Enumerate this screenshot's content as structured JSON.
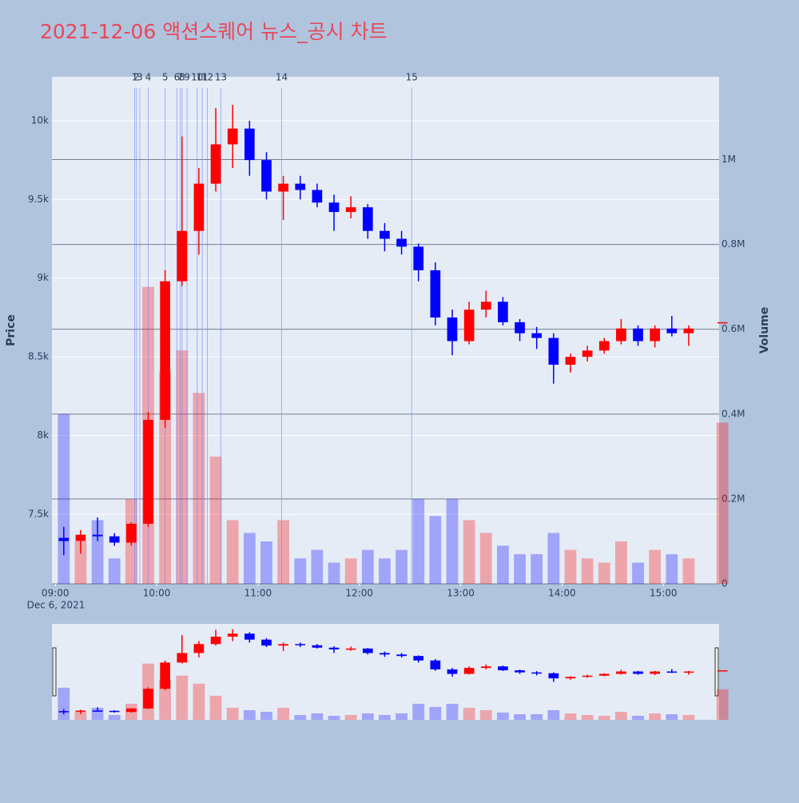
{
  "chart_data": {
    "type": "candlestick",
    "title": "2021-12-06 액션스퀘어 뉴스_공시 차트",
    "date_label": "Dec 6, 2021",
    "y_title": "Price",
    "y2_title": "Volume",
    "up_color": "#ff0000",
    "down_color": "#0000ff",
    "x": [
      "09:00",
      "09:10",
      "09:20",
      "09:30",
      "09:40",
      "09:50",
      "10:00",
      "10:10",
      "10:20",
      "10:30",
      "10:40",
      "10:50",
      "11:00",
      "11:10",
      "11:20",
      "11:30",
      "11:40",
      "11:50",
      "12:00",
      "12:10",
      "12:20",
      "12:30",
      "12:40",
      "12:50",
      "13:00",
      "13:10",
      "13:20",
      "13:30",
      "13:40",
      "13:50",
      "14:00",
      "14:10",
      "14:20",
      "14:30",
      "14:40",
      "14:50",
      "15:00",
      "15:10",
      "15:30"
    ],
    "open": [
      7350,
      7330,
      7370,
      7360,
      7320,
      7440,
      8100,
      8980,
      9300,
      9600,
      9850,
      9950,
      9750,
      9550,
      9600,
      9560,
      9480,
      9420,
      9450,
      9300,
      9250,
      9200,
      9050,
      8750,
      8600,
      8800,
      8850,
      8720,
      8650,
      8620,
      8450,
      8500,
      8540,
      8600,
      8680,
      8600,
      8680,
      8650,
      8720
    ],
    "high": [
      7420,
      7400,
      7480,
      7380,
      7450,
      8150,
      9050,
      9900,
      9700,
      10080,
      10100,
      10000,
      9800,
      9650,
      9650,
      9600,
      9530,
      9520,
      9470,
      9350,
      9300,
      9220,
      9100,
      8800,
      8850,
      8920,
      8880,
      8740,
      8690,
      8650,
      8520,
      8570,
      8620,
      8740,
      8700,
      8700,
      8760,
      8700,
      8720
    ],
    "low": [
      7240,
      7250,
      7330,
      7300,
      7300,
      7420,
      8050,
      8950,
      9150,
      9550,
      9700,
      9650,
      9500,
      9370,
      9500,
      9450,
      9300,
      9380,
      9250,
      9170,
      9150,
      8980,
      8700,
      8510,
      8580,
      8750,
      8700,
      8600,
      8550,
      8330,
      8400,
      8470,
      8520,
      8580,
      8570,
      8560,
      8630,
      8570,
      8720
    ],
    "close": [
      7330,
      7370,
      7360,
      7320,
      7440,
      8100,
      8980,
      9300,
      9600,
      9850,
      9950,
      9750,
      9550,
      9600,
      9560,
      9480,
      9420,
      9450,
      9300,
      9250,
      9200,
      9050,
      8750,
      8600,
      8800,
      8850,
      8720,
      8650,
      8620,
      8450,
      8500,
      8540,
      8600,
      8680,
      8600,
      8680,
      8650,
      8680,
      8720
    ],
    "volume": [
      400000,
      100000,
      150000,
      60000,
      200000,
      700000,
      500000,
      550000,
      450000,
      300000,
      150000,
      120000,
      100000,
      150000,
      60000,
      80000,
      50000,
      60000,
      80000,
      60000,
      80000,
      200000,
      160000,
      200000,
      150000,
      120000,
      90000,
      70000,
      70000,
      120000,
      80000,
      60000,
      50000,
      100000,
      50000,
      80000,
      70000,
      60000,
      380000
    ],
    "news": {
      "labels": [
        "1",
        "2",
        "3",
        "4",
        "5",
        "6",
        "7",
        "8",
        "9",
        "10",
        "11",
        "12",
        "13",
        "14",
        "15"
      ],
      "x": [
        "09:47",
        "09:48",
        "09:50",
        "09:55",
        "10:05",
        "10:12",
        "10:14",
        "10:15",
        "10:18",
        "10:24",
        "10:27",
        "10:30",
        "10:38",
        "11:14",
        "12:31"
      ],
      "color": "#6f86ff"
    },
    "xlim": [
      "08:58",
      "15:33"
    ],
    "xticks": [
      "09:00",
      "10:00",
      "11:00",
      "12:00",
      "13:00",
      "14:00",
      "15:00"
    ],
    "ylim": [
      7058,
      10279
    ],
    "yticks": [
      {
        "value": 7500,
        "label": "7.5k"
      },
      {
        "value": 8000,
        "label": "8k"
      },
      {
        "value": 8500,
        "label": "8.5k"
      },
      {
        "value": 9000,
        "label": "9k"
      },
      {
        "value": 9500,
        "label": "9.5k"
      },
      {
        "value": 10000,
        "label": "10k"
      }
    ],
    "y2lim": [
      0,
      1195000
    ],
    "y2ticks": [
      0,
      {
        "value": 200000,
        "label": "0.2M"
      },
      {
        "value": 400000,
        "label": "0.4M"
      },
      {
        "value": 600000,
        "label": "0.6M"
      },
      {
        "value": 800000,
        "label": "0.8M"
      },
      {
        "value": 1000000,
        "label": "1M"
      }
    ],
    "grid": true,
    "rangeslider": true
  }
}
